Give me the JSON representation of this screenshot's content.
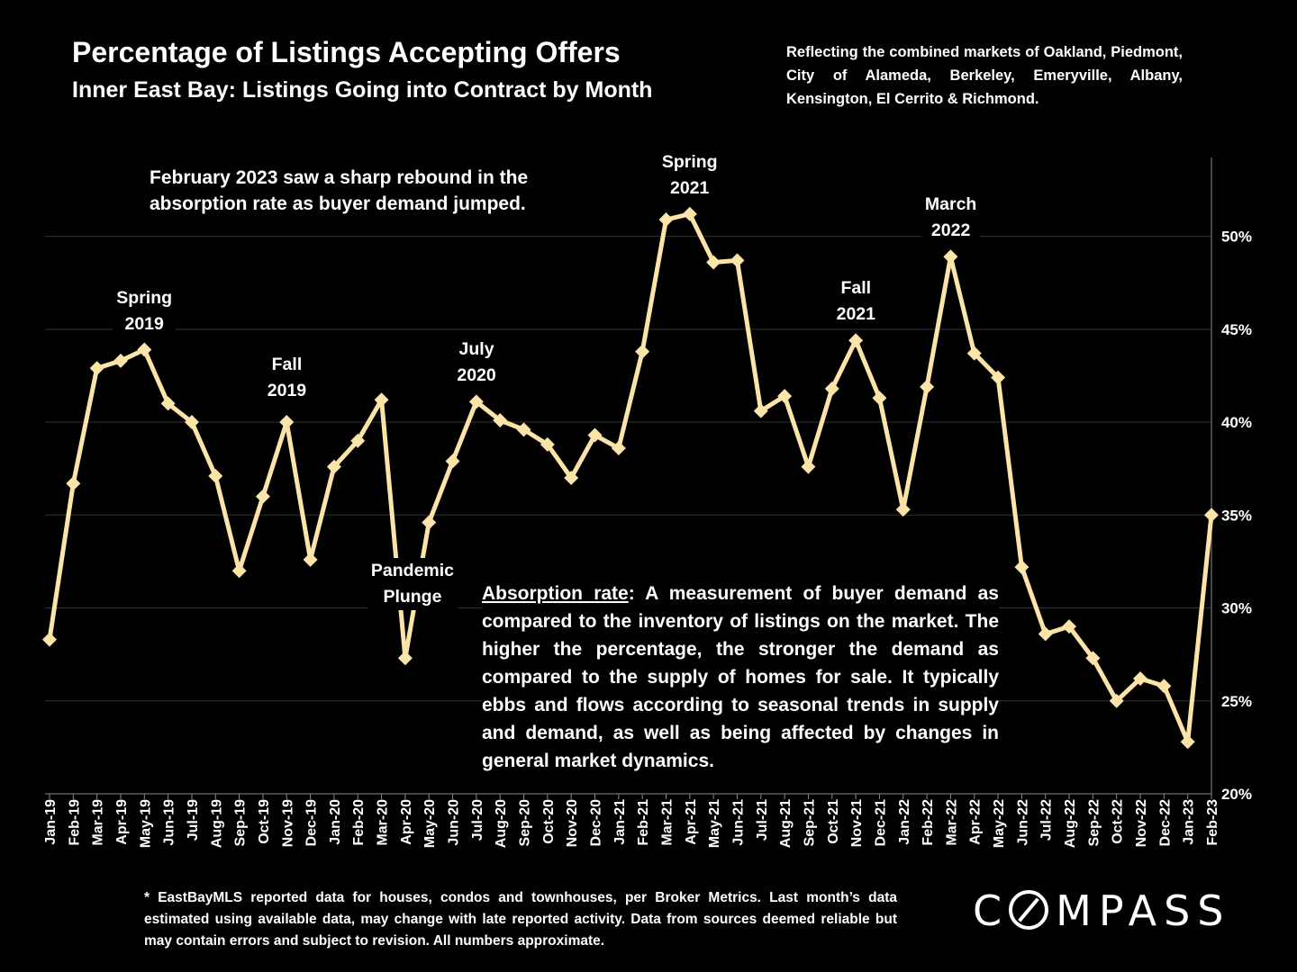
{
  "header": {
    "title": "Percentage of Listings Accepting Offers",
    "subtitle": "Inner East Bay: Listings Going into Contract by Month",
    "note": "Reflecting the combined markets of Oakland, Piedmont, City of Alameda, Berkeley, Emeryville, Albany, Kensington, El Cerrito & Richmond."
  },
  "callout": "February 2023 saw a sharp rebound in the absorption rate as buyer demand jumped.",
  "definition": {
    "term": "Absorption rate",
    "text": ":  A measurement of buyer demand as compared to the inventory of listings on the market. The higher the percentage, the stronger the demand as compared to the supply of homes for sale. It typically ebbs and flows according to seasonal trends in supply and demand, as well as being affected by changes in general market dynamics."
  },
  "footnote": "* EastBayMLS reported data for houses, condos and townhouses, per Broker Metrics. Last month’s data estimated using available data, may change with late reported activity. Data from sources deemed reliable but may contain errors and subject to revision. All numbers approximate.",
  "logo": {
    "pre": "C",
    "post": "MPASS"
  },
  "annotations": [
    {
      "text": "Spring\n2019",
      "x": "May-19"
    },
    {
      "text": "Fall\n2019",
      "x": "Nov-19"
    },
    {
      "text": "Pandemic\nPlunge",
      "x": "Apr-20"
    },
    {
      "text": "July\n2020",
      "x": "Jul-20"
    },
    {
      "text": "Spring\n2021",
      "x": "Apr-21"
    },
    {
      "text": "Fall\n2021",
      "x": "Nov-21"
    },
    {
      "text": "March\n2022",
      "x": "Mar-22"
    }
  ],
  "colors": {
    "line": "#FCE4A8",
    "background": "#000000",
    "grid": "#333333",
    "text": "#FFFFFF"
  },
  "chart_data": {
    "type": "line",
    "categories": [
      "Jan-19",
      "Feb-19",
      "Mar-19",
      "Apr-19",
      "May-19",
      "Jun-19",
      "Jul-19",
      "Aug-19",
      "Sep-19",
      "Oct-19",
      "Nov-19",
      "Dec-19",
      "Jan-20",
      "Feb-20",
      "Mar-20",
      "Apr-20",
      "May-20",
      "Jun-20",
      "Jul-20",
      "Aug-20",
      "Sep-20",
      "Oct-20",
      "Nov-20",
      "Dec-20",
      "Jan-21",
      "Feb-21",
      "Mar-21",
      "Apr-21",
      "May-21",
      "Jun-21",
      "Jul-21",
      "Aug-21",
      "Sep-21",
      "Oct-21",
      "Nov-21",
      "Dec-21",
      "Jan-22",
      "Feb-22",
      "Mar-22",
      "Apr-22",
      "May-22",
      "Jun-22",
      "Jul-22",
      "Aug-22",
      "Sep-22",
      "Oct-22",
      "Nov-22",
      "Dec-22",
      "Jan-23",
      "Feb-23"
    ],
    "values": [
      28.3,
      36.7,
      42.9,
      43.3,
      43.9,
      41.0,
      40.0,
      37.1,
      32.0,
      36.0,
      40.0,
      32.6,
      37.6,
      39.0,
      41.2,
      27.3,
      34.6,
      37.9,
      41.1,
      40.1,
      39.6,
      38.8,
      37.0,
      39.3,
      38.6,
      43.8,
      50.9,
      51.2,
      48.6,
      48.7,
      40.6,
      41.4,
      37.6,
      41.8,
      44.4,
      41.3,
      35.3,
      41.9,
      48.9,
      43.7,
      42.4,
      32.2,
      28.6,
      29.0,
      27.3,
      25.0,
      26.2,
      25.8,
      22.8,
      35.0
    ],
    "yticks": [
      "20%",
      "25%",
      "30%",
      "35%",
      "40%",
      "45%",
      "50%"
    ],
    "ylim": [
      20,
      54
    ],
    "y_axis_position": "right",
    "grid": true,
    "marker": "diamond"
  }
}
